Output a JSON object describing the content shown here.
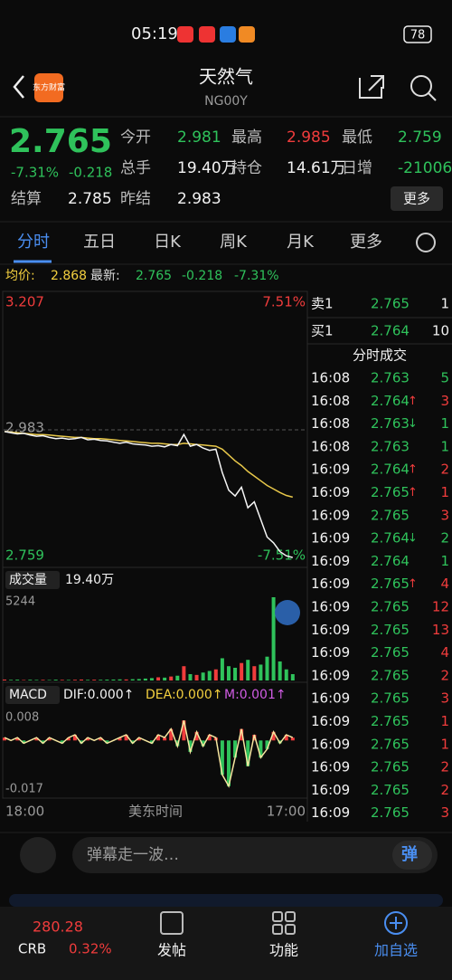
{
  "status": {
    "time": "05:19",
    "battery": "78"
  },
  "header": {
    "logo": "东方财富",
    "title": "天然气",
    "code": "NG00Y"
  },
  "quote": {
    "price": "2.765",
    "change_pct": "-7.31%",
    "change": "-0.218",
    "fields": [
      {
        "label": "今开",
        "value": "2.981"
      },
      {
        "label": "最高",
        "value": "2.985"
      },
      {
        "label": "最低",
        "value": "2.759"
      },
      {
        "label": "总手",
        "value": "19.40万"
      },
      {
        "label": "持仓",
        "value": "14.61万"
      },
      {
        "label": "日增",
        "value": "-21006"
      },
      {
        "label": "结算",
        "value": "2.785"
      },
      {
        "label": "昨结",
        "value": "2.983"
      }
    ],
    "more": "更多"
  },
  "tabs": [
    "分时",
    "五日",
    "日K",
    "周K",
    "月K",
    "更多"
  ],
  "info": {
    "avg_label": "均价:",
    "avg": "2.868",
    "latest_label": "最新:",
    "latest": "2.765",
    "change": "-0.218",
    "change_pct": "-7.31%"
  },
  "price_chart": {
    "ticks": [
      3.207,
      2.983,
      2.759
    ],
    "pct_top": "7.51%",
    "pct_bottom": "-7.51%",
    "price": [
      2.98,
      2.978,
      2.976,
      2.977,
      2.974,
      2.972,
      2.973,
      2.97,
      2.968,
      2.969,
      2.967,
      2.968,
      2.97,
      2.966,
      2.967,
      2.965,
      2.964,
      2.962,
      2.96,
      2.962,
      2.959,
      2.958,
      2.957,
      2.955,
      2.956,
      2.954,
      2.958,
      2.956,
      2.975,
      2.955,
      2.958,
      2.952,
      2.948,
      2.95,
      2.91,
      2.88,
      2.87,
      2.885,
      2.85,
      2.86,
      2.83,
      2.8,
      2.79,
      2.775,
      2.768,
      2.765
    ],
    "avg": [
      2.98,
      2.979,
      2.978,
      2.977,
      2.976,
      2.975,
      2.975,
      2.974,
      2.973,
      2.972,
      2.971,
      2.97,
      2.97,
      2.969,
      2.968,
      2.968,
      2.967,
      2.966,
      2.965,
      2.964,
      2.963,
      2.962,
      2.961,
      2.96,
      2.96,
      2.959,
      2.958,
      2.958,
      2.96,
      2.959,
      2.958,
      2.957,
      2.956,
      2.955,
      2.95,
      2.94,
      2.93,
      2.922,
      2.912,
      2.904,
      2.896,
      2.888,
      2.882,
      2.876,
      2.871,
      2.868
    ]
  },
  "volume_chart": {
    "label": "成交量",
    "total": "19.40万",
    "max": 5244,
    "values": [
      60,
      40,
      50,
      30,
      45,
      35,
      40,
      30,
      50,
      40,
      35,
      45,
      60,
      40,
      50,
      45,
      55,
      60,
      70,
      65,
      80,
      90,
      120,
      150,
      200,
      180,
      250,
      300,
      900,
      400,
      350,
      500,
      600,
      700,
      1400,
      900,
      800,
      1100,
      1300,
      900,
      1000,
      1500,
      5244,
      1200,
      700,
      400
    ]
  },
  "macd_chart": {
    "label": "MACD",
    "dif": "DIF:0.000↑",
    "dea": "DEA:0.000↑",
    "m": "M:0.001↑",
    "ticks": [
      0.008,
      -0.017
    ],
    "values": [
      0.001,
      0.0,
      0.001,
      -0.001,
      0.0,
      0.001,
      -0.001,
      0.001,
      0.0,
      -0.001,
      0.001,
      0.002,
      -0.001,
      0.001,
      0.0,
      0.001,
      -0.001,
      0.0,
      0.001,
      0.002,
      -0.001,
      0.001,
      0.0,
      -0.001,
      0.002,
      0.001,
      0.004,
      -0.002,
      0.007,
      -0.004,
      0.003,
      -0.002,
      0.002,
      0.001,
      -0.012,
      -0.016,
      -0.006,
      0.004,
      -0.009,
      0.002,
      -0.006,
      -0.003,
      0.003,
      -0.001,
      0.002,
      0.001
    ]
  },
  "x_axis": {
    "start": "18:00",
    "middle": "美东时间",
    "end": "17:00"
  },
  "order_book": {
    "ask": {
      "label": "卖1",
      "price": "2.765",
      "vol": 1
    },
    "bid": {
      "label": "买1",
      "price": "2.764",
      "vol": 10
    },
    "title": "分时成交",
    "trades": [
      {
        "time": "16:08",
        "price": "2.763",
        "vol": 5,
        "side": "down"
      },
      {
        "time": "16:08",
        "price": "2.764",
        "arrow": "↑",
        "vol": 3,
        "side": "up"
      },
      {
        "time": "16:08",
        "price": "2.763",
        "arrow": "↓",
        "vol": 1,
        "side": "down"
      },
      {
        "time": "16:08",
        "price": "2.763",
        "vol": 1,
        "side": "down"
      },
      {
        "time": "16:09",
        "price": "2.764",
        "arrow": "↑",
        "vol": 2,
        "side": "up"
      },
      {
        "time": "16:09",
        "price": "2.765",
        "arrow": "↑",
        "vol": 1,
        "side": "up"
      },
      {
        "time": "16:09",
        "price": "2.765",
        "vol": 3,
        "side": "up"
      },
      {
        "time": "16:09",
        "price": "2.764",
        "arrow": "↓",
        "vol": 2,
        "side": "down"
      },
      {
        "time": "16:09",
        "price": "2.764",
        "vol": 1,
        "side": "down"
      },
      {
        "time": "16:09",
        "price": "2.765",
        "arrow": "↑",
        "vol": 4,
        "side": "up"
      },
      {
        "time": "16:09",
        "price": "2.765",
        "vol": 12,
        "side": "up"
      },
      {
        "time": "16:09",
        "price": "2.765",
        "vol": 13,
        "side": "up"
      },
      {
        "time": "16:09",
        "price": "2.765",
        "vol": 4,
        "side": "up"
      },
      {
        "time": "16:09",
        "price": "2.765",
        "vol": 2,
        "side": "up"
      },
      {
        "time": "16:09",
        "price": "2.765",
        "vol": 3,
        "side": "up"
      },
      {
        "time": "16:09",
        "price": "2.765",
        "vol": 1,
        "side": "up"
      },
      {
        "time": "16:09",
        "price": "2.765",
        "vol": 1,
        "side": "up"
      },
      {
        "time": "16:09",
        "price": "2.765",
        "vol": 2,
        "side": "up"
      },
      {
        "time": "16:09",
        "price": "2.765",
        "vol": 2,
        "side": "up"
      },
      {
        "time": "16:09",
        "price": "2.765",
        "vol": 3,
        "side": "up"
      }
    ]
  },
  "bottom": {
    "input": "弹幕走一波…",
    "button": "弹",
    "ticker": {
      "value": "280.28",
      "name": "CRB",
      "pct": "0.32%"
    },
    "nav": [
      "发帖",
      "功能",
      "加自选"
    ]
  }
}
